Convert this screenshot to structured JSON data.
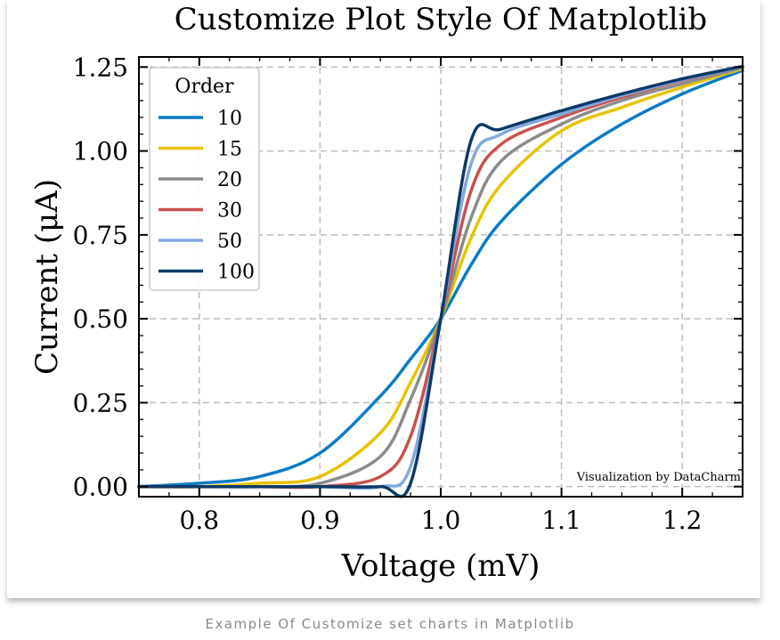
{
  "chart_data": {
    "type": "line",
    "title": "Customize Plot Style Of Matplotlib",
    "xlabel": "Voltage (mV)",
    "ylabel": "Current (μA)",
    "xlim": [
      0.75,
      1.25
    ],
    "ylim": [
      -0.03,
      1.28
    ],
    "x_ticks": [
      0.8,
      0.9,
      1.0,
      1.1,
      1.2
    ],
    "x_tick_labels": [
      "0.8",
      "0.9",
      "1.0",
      "1.1",
      "1.2"
    ],
    "y_ticks": [
      0.0,
      0.25,
      0.5,
      0.75,
      1.0,
      1.25
    ],
    "y_tick_labels": [
      "0.00",
      "0.25",
      "0.50",
      "0.75",
      "1.00",
      "1.25"
    ],
    "grid": true,
    "legend": {
      "title": "Order",
      "position": "top-left"
    },
    "annotation": "Visualization by DataCharm",
    "series": [
      {
        "name": "10",
        "color": "#0C7BC4",
        "x": [
          0.75,
          0.8,
          0.85,
          0.9,
          0.95,
          0.975,
          1.0,
          1.025,
          1.05,
          1.1,
          1.15,
          1.2,
          1.25
        ],
        "y": [
          0.0,
          0.01,
          0.03,
          0.1,
          0.27,
          0.38,
          0.5,
          0.66,
          0.79,
          0.96,
          1.08,
          1.17,
          1.24
        ]
      },
      {
        "name": "15",
        "color": "#E8C300",
        "x": [
          0.75,
          0.8,
          0.85,
          0.9,
          0.95,
          0.975,
          1.0,
          1.025,
          1.05,
          1.1,
          1.15,
          1.2,
          1.25
        ],
        "y": [
          0.0,
          0.0,
          0.01,
          0.03,
          0.16,
          0.31,
          0.5,
          0.74,
          0.9,
          1.06,
          1.13,
          1.19,
          1.245
        ]
      },
      {
        "name": "20",
        "color": "#8C8C8C",
        "x": [
          0.75,
          0.8,
          0.85,
          0.9,
          0.95,
          0.975,
          1.0,
          1.025,
          1.05,
          1.1,
          1.15,
          1.2,
          1.25
        ],
        "y": [
          0.0,
          0.0,
          0.0,
          0.01,
          0.09,
          0.26,
          0.5,
          0.8,
          0.97,
          1.08,
          1.15,
          1.2,
          1.248
        ]
      },
      {
        "name": "30",
        "color": "#C9514E",
        "x": [
          0.75,
          0.8,
          0.85,
          0.9,
          0.95,
          0.975,
          1.0,
          1.025,
          1.05,
          1.1,
          1.15,
          1.2,
          1.25
        ],
        "y": [
          0.0,
          0.0,
          0.0,
          0.0,
          0.03,
          0.15,
          0.5,
          0.88,
          1.02,
          1.1,
          1.16,
          1.21,
          1.25
        ]
      },
      {
        "name": "50",
        "color": "#82A9DF",
        "x": [
          0.75,
          0.8,
          0.85,
          0.9,
          0.95,
          0.975,
          1.0,
          1.025,
          1.05,
          1.1,
          1.15,
          1.2,
          1.25
        ],
        "y": [
          0.0,
          0.0,
          0.0,
          0.0,
          0.0,
          0.06,
          0.5,
          0.96,
          1.05,
          1.11,
          1.165,
          1.212,
          1.25
        ]
      },
      {
        "name": "100",
        "color": "#0B3A66",
        "x": [
          0.75,
          0.8,
          0.85,
          0.9,
          0.95,
          0.975,
          1.0,
          1.025,
          1.05,
          1.1,
          1.15,
          1.2,
          1.25
        ],
        "y": [
          0.0,
          0.0,
          0.0,
          0.0,
          0.0,
          0.01,
          0.5,
          1.03,
          1.065,
          1.12,
          1.17,
          1.215,
          1.252
        ]
      }
    ]
  },
  "caption": "Example Of Customize set charts in Matplotlib"
}
